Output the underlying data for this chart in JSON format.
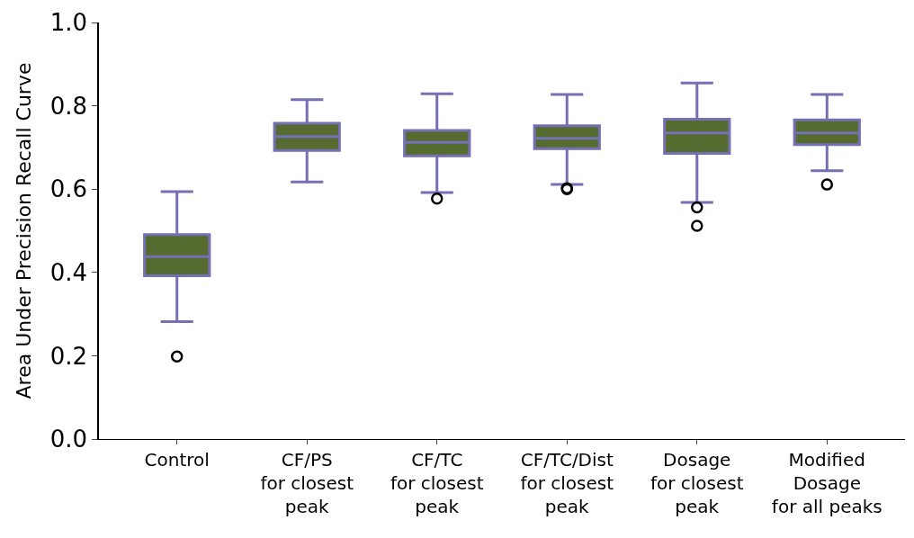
{
  "chart_data": {
    "type": "box",
    "ylabel": "Area Under Precision Recall Curve",
    "categories": [
      "Control",
      "CF/PS\nfor closest\npeak",
      "CF/TC\nfor closest\npeak",
      "CF/TC/Dist\nfor closest\npeak",
      "Dosage\nfor closest\npeak",
      "Modified\nDosage\nfor all peaks"
    ],
    "series": [
      {
        "color": "#556b2f",
        "boxes": [
          {
            "low": 0.282,
            "q1": 0.392,
            "median": 0.438,
            "q3": 0.491,
            "high": 0.594,
            "outliers": [
              0.198
            ]
          },
          {
            "low": 0.617,
            "q1": 0.693,
            "median": 0.726,
            "q3": 0.758,
            "high": 0.815
          },
          {
            "low": 0.592,
            "q1": 0.68,
            "median": 0.712,
            "q3": 0.741,
            "high": 0.829,
            "outliers": [
              0.577
            ]
          },
          {
            "low": 0.611,
            "q1": 0.697,
            "median": 0.722,
            "q3": 0.752,
            "high": 0.827,
            "outliers": [
              0.602,
              0.6
            ]
          },
          {
            "low": 0.568,
            "q1": 0.686,
            "median": 0.735,
            "q3": 0.768,
            "high": 0.855,
            "outliers": [
              0.556,
              0.512
            ]
          },
          {
            "low": 0.644,
            "q1": 0.707,
            "median": 0.735,
            "q3": 0.766,
            "high": 0.827,
            "outliers": [
              0.611
            ]
          }
        ]
      }
    ],
    "ylim": [
      0,
      1
    ],
    "yticks": [
      {
        "value": 0,
        "label": "0.0"
      },
      0.2,
      0.4,
      0.6,
      0.8,
      {
        "value": 1,
        "label": "1.0"
      }
    ],
    "marker": "circle"
  }
}
